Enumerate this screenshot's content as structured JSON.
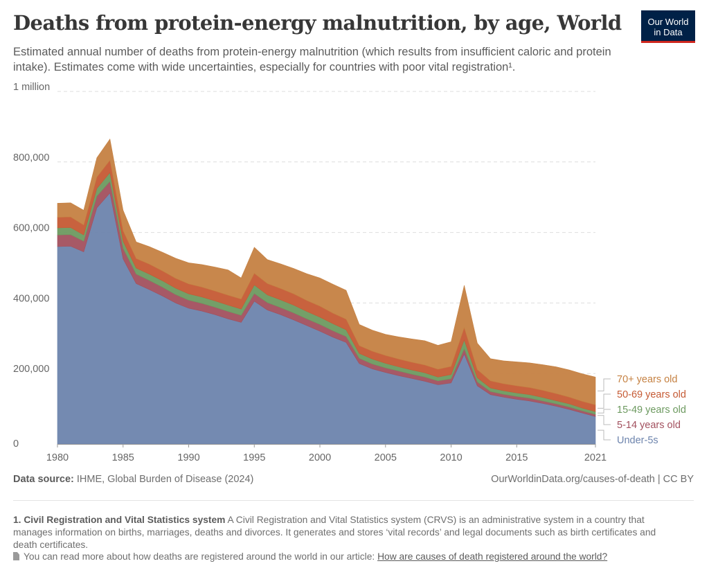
{
  "header": {
    "title": "Deaths from protein-energy malnutrition, by age, World",
    "subtitle": "Estimated annual number of deaths from protein-energy malnutrition (which results from insufficient caloric and protein intake). Estimates come with wide uncertainties, especially for countries with poor vital registration¹.",
    "logo_line1": "Our World",
    "logo_line2": "in Data"
  },
  "chart_data": {
    "type": "area",
    "stacked": true,
    "x": [
      1980,
      1981,
      1982,
      1983,
      1984,
      1985,
      1986,
      1987,
      1988,
      1989,
      1990,
      1991,
      1992,
      1993,
      1994,
      1995,
      1996,
      1997,
      1998,
      1999,
      2000,
      2001,
      2002,
      2003,
      2004,
      2005,
      2006,
      2007,
      2008,
      2009,
      2010,
      2011,
      2012,
      2013,
      2014,
      2015,
      2016,
      2017,
      2018,
      2019,
      2020,
      2021
    ],
    "series": [
      {
        "name": "Under-5s",
        "color": "#6d84ad",
        "values": [
          560000,
          561000,
          545000,
          670000,
          712000,
          525000,
          455000,
          438000,
          420000,
          400000,
          385000,
          377000,
          367000,
          355000,
          345000,
          405000,
          380000,
          367000,
          352000,
          336000,
          320000,
          303000,
          288000,
          228000,
          213000,
          203000,
          194000,
          186000,
          178000,
          168000,
          173000,
          255000,
          165000,
          140000,
          133000,
          127000,
          122000,
          115000,
          107000,
          98000,
          88000,
          78000
        ]
      },
      {
        "name": "5-14 years old",
        "color": "#a2505e",
        "values": [
          33000,
          33000,
          30000,
          33000,
          33000,
          30000,
          27000,
          26000,
          25000,
          24000,
          23000,
          22000,
          21000,
          21000,
          20000,
          22000,
          21000,
          20000,
          20000,
          19000,
          19000,
          18000,
          17000,
          15000,
          14000,
          13000,
          13000,
          12000,
          12000,
          11000,
          12000,
          15000,
          11000,
          9000,
          8000,
          8000,
          8000,
          7000,
          7000,
          7000,
          6000,
          6000
        ]
      },
      {
        "name": "15-49 years old",
        "color": "#6d9a60",
        "values": [
          20000,
          20000,
          18000,
          22000,
          25000,
          20000,
          17000,
          18000,
          18000,
          18000,
          18000,
          18000,
          18000,
          18000,
          18000,
          24000,
          22000,
          22000,
          22000,
          21000,
          21000,
          20000,
          19000,
          14000,
          14000,
          13000,
          12000,
          12000,
          12000,
          11000,
          12000,
          25000,
          12000,
          10000,
          10000,
          10000,
          10000,
          10000,
          9000,
          9000,
          8000,
          8000
        ]
      },
      {
        "name": "50-69 years old",
        "color": "#c55a34",
        "values": [
          30000,
          30000,
          28000,
          32000,
          35000,
          30000,
          27000,
          28000,
          28000,
          28000,
          28000,
          28000,
          28000,
          28000,
          28000,
          33000,
          32000,
          32000,
          32000,
          31000,
          31000,
          30000,
          30000,
          22000,
          22000,
          22000,
          22000,
          22000,
          22000,
          22000,
          23000,
          35000,
          23000,
          20000,
          20000,
          20000,
          20000,
          20000,
          20000,
          19000,
          19000,
          19000
        ]
      },
      {
        "name": "70+ years old",
        "color": "#c58142",
        "values": [
          40000,
          40000,
          42000,
          55000,
          60000,
          58000,
          47000,
          50000,
          53000,
          57000,
          60000,
          64000,
          68000,
          72000,
          60000,
          74000,
          68000,
          70000,
          72000,
          76000,
          80000,
          82000,
          82000,
          60000,
          60000,
          60000,
          63000,
          66000,
          69000,
          68000,
          70000,
          120000,
          75000,
          63000,
          65000,
          68000,
          70000,
          73000,
          76000,
          77000,
          78000,
          79000
        ]
      }
    ],
    "ylim": [
      0,
      1000000
    ],
    "y_ticks": [
      {
        "value": 0,
        "label": "0"
      },
      {
        "value": 200000,
        "label": "200,000"
      },
      {
        "value": 400000,
        "label": "400,000"
      },
      {
        "value": 600000,
        "label": "600,000"
      },
      {
        "value": 800000,
        "label": "800,000"
      },
      {
        "value": 1000000,
        "label": "1 million"
      }
    ],
    "x_ticks": [
      {
        "value": 1980,
        "label": "1980"
      },
      {
        "value": 1985,
        "label": "1985"
      },
      {
        "value": 1990,
        "label": "1990"
      },
      {
        "value": 1995,
        "label": "1995"
      },
      {
        "value": 2000,
        "label": "2000"
      },
      {
        "value": 2005,
        "label": "2005"
      },
      {
        "value": 2010,
        "label": "2010"
      },
      {
        "value": 2015,
        "label": "2015"
      },
      {
        "value": 2021,
        "label": "2021"
      }
    ],
    "grid": "horizontal-dashed",
    "legend": "right-end-labels"
  },
  "footer": {
    "source_label": "Data source:",
    "source_text": "IHME, Global Burden of Disease (2024)",
    "attribution": "OurWorldinData.org/causes-of-death | CC BY",
    "footnote_title": "1. Civil Registration and Vital Statistics system",
    "footnote_text": "A Civil Registration and Vital Statistics system (CRVS) is an administrative system in a country that manages information on births, marriages, deaths and divorces. It generates and stores ‘vital records’ and legal documents such as birth certificates and death certificates.",
    "readmore_text": "You can read more about how deaths are registered around the world in our article:",
    "readmore_link": "How are causes of death registered around the world?"
  }
}
